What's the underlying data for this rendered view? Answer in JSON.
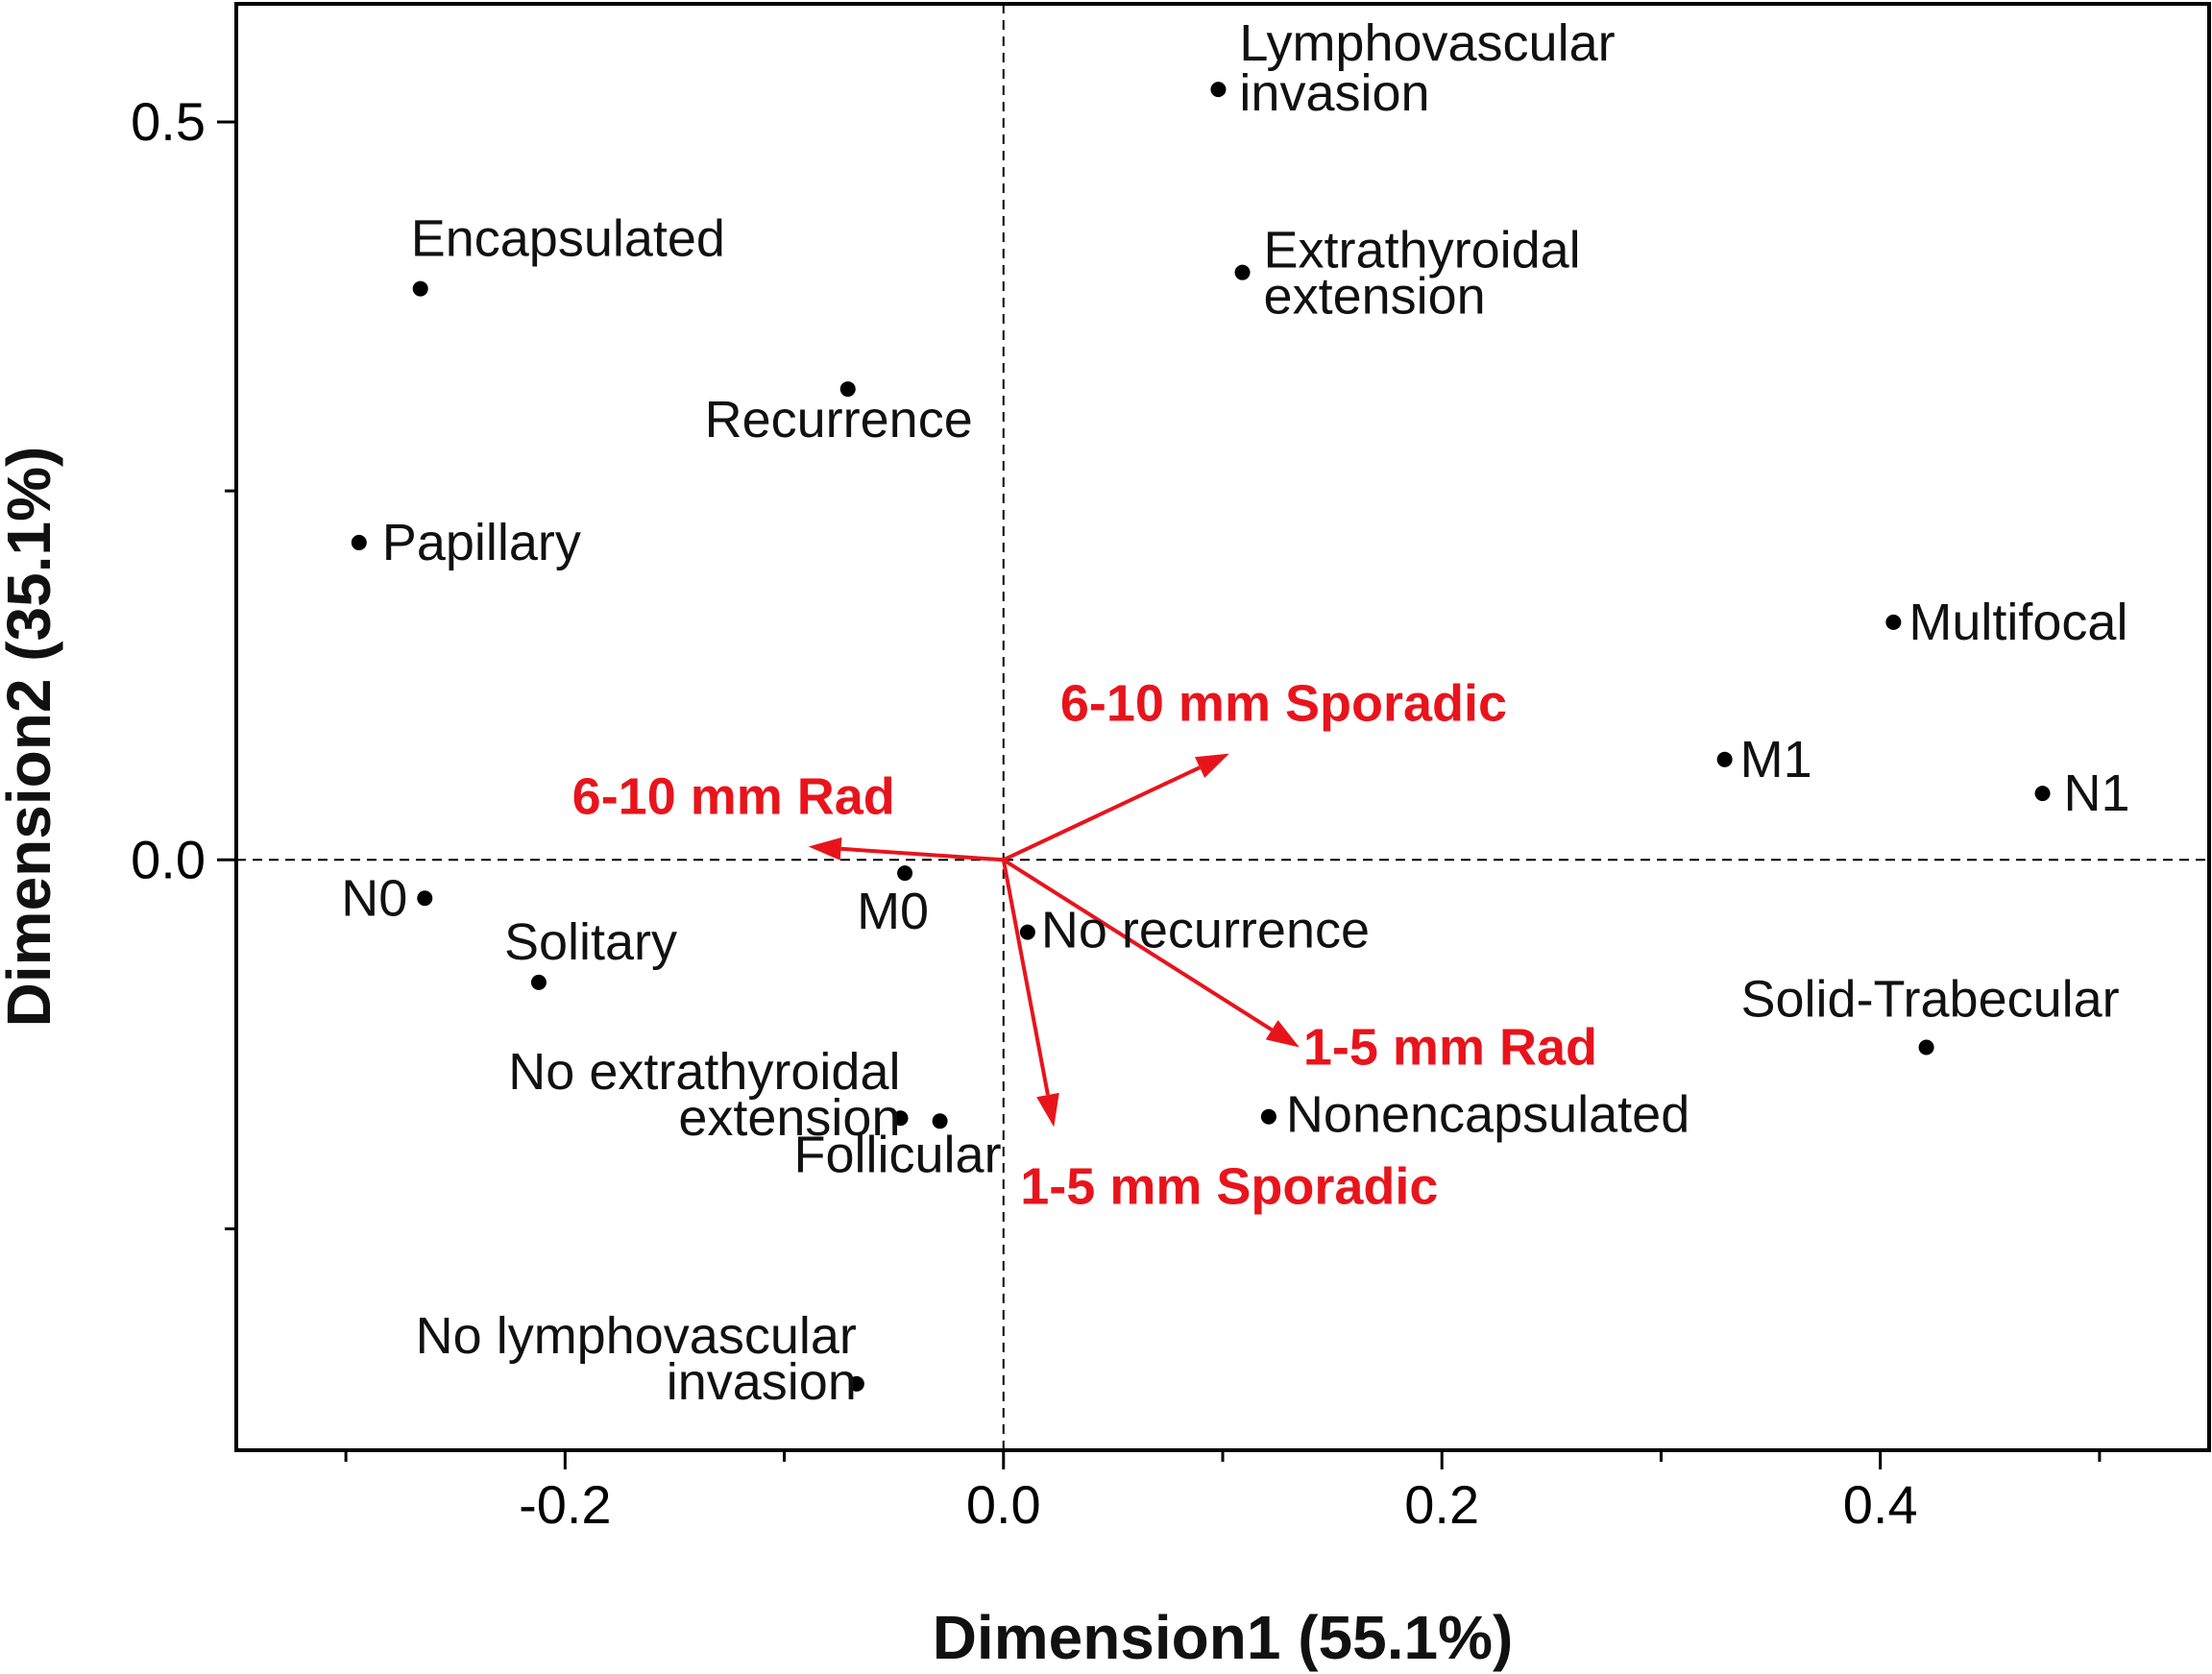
{
  "chart_data": {
    "type": "scatter",
    "xlabel": "Dimension1 (55.1%)",
    "ylabel": "Dimension2 (35.1%)",
    "xlim": [
      -0.35,
      0.55
    ],
    "ylim": [
      -0.4,
      0.58
    ],
    "x_ticks": [
      -0.2,
      0.0,
      0.2,
      0.4
    ],
    "x_tick_labels": [
      "-0.2",
      "0.0",
      "0.2",
      "0.4"
    ],
    "x_minor_ticks": [
      -0.3,
      -0.1,
      0.1,
      0.3,
      0.5
    ],
    "y_ticks": [
      0.5,
      0.0
    ],
    "y_tick_labels": [
      "0.5",
      "0.0"
    ],
    "y_minor_ticks": [
      0.25,
      -0.25
    ],
    "reference_lines": {
      "x0": true,
      "y0": true,
      "style": "dashed"
    },
    "grid": false,
    "points": [
      {
        "label": [
          "Lymphovascular",
          "invasion"
        ],
        "x": 0.098,
        "y": 0.522
      },
      {
        "label": [
          "Encapsulated"
        ],
        "x": -0.266,
        "y": 0.387
      },
      {
        "label": [
          "Extrathyroidal",
          "extension"
        ],
        "x": 0.109,
        "y": 0.398
      },
      {
        "label": [
          "Recurrence"
        ],
        "x": -0.071,
        "y": 0.319
      },
      {
        "label": [
          "Papillary"
        ],
        "x": -0.294,
        "y": 0.215
      },
      {
        "label": [
          "Multifocal"
        ],
        "x": 0.406,
        "y": 0.161
      },
      {
        "label": [
          "M1"
        ],
        "x": 0.329,
        "y": 0.068
      },
      {
        "label": [
          "N1"
        ],
        "x": 0.474,
        "y": 0.045
      },
      {
        "label": [
          "N0"
        ],
        "x": -0.264,
        "y": -0.026
      },
      {
        "label": [
          "M0"
        ],
        "x": -0.045,
        "y": -0.009
      },
      {
        "label": [
          "No recurrence"
        ],
        "x": 0.011,
        "y": -0.049
      },
      {
        "label": [
          "Solitary"
        ],
        "x": -0.212,
        "y": -0.083
      },
      {
        "label": [
          "Solid-Trabecular"
        ],
        "x": 0.421,
        "y": -0.127
      },
      {
        "label": [
          "No extrathyroidal",
          "extension"
        ],
        "x": -0.047,
        "y": -0.175
      },
      {
        "label": [
          "Follicular"
        ],
        "x": -0.029,
        "y": -0.177
      },
      {
        "label": [
          "Nonencapsulated"
        ],
        "x": 0.121,
        "y": -0.174
      },
      {
        "label": [
          "No lymphovascular",
          "invasion"
        ],
        "x": -0.067,
        "y": -0.355
      }
    ],
    "arrows": [
      {
        "label": "6-10 mm Sporadic",
        "x": 0.103,
        "y": 0.072
      },
      {
        "label": "6-10 mm Rad",
        "x": -0.089,
        "y": 0.009
      },
      {
        "label": "1-5 mm Rad",
        "x": 0.135,
        "y": -0.127
      },
      {
        "label": "1-5 mm Sporadic",
        "x": 0.023,
        "y": -0.181
      }
    ],
    "colors": {
      "points": "#000000",
      "arrows": "#e8141c",
      "axes": "#000000"
    }
  }
}
